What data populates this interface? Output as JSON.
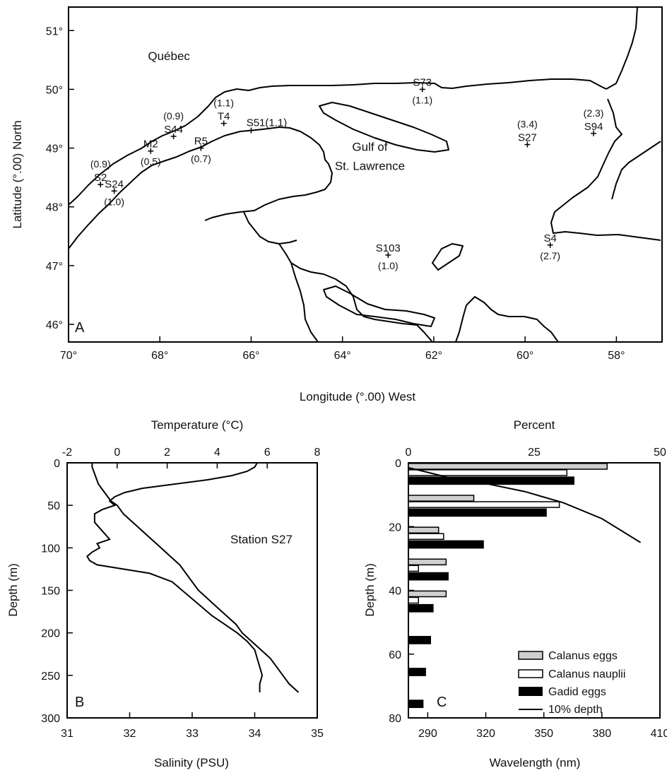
{
  "chart_data": [
    {
      "type": "map",
      "panel": "A",
      "xlabel": "Longitude (°.00) West",
      "ylabel": "Latitude (°.00) North",
      "xlim": [
        70,
        57
      ],
      "ylim": [
        45.7,
        51.4
      ],
      "x_ticks": [
        "70°",
        "68°",
        "66°",
        "64°",
        "62°",
        "60°",
        "58°"
      ],
      "y_ticks": [
        "46°",
        "47°",
        "48°",
        "49°",
        "50°",
        "51°"
      ],
      "x_tick_values": [
        70,
        68,
        66,
        64,
        62,
        60,
        58
      ],
      "y_tick_values": [
        46,
        47,
        48,
        49,
        50,
        51
      ],
      "region_labels": [
        {
          "text": "Québec",
          "lon": 67.8,
          "lat": 50.5
        },
        {
          "text": "Gulf of",
          "lon": 63.4,
          "lat": 48.95
        },
        {
          "text": "St. Lawrence",
          "lon": 63.4,
          "lat": 48.63
        }
      ],
      "stations": [
        {
          "name": "S73",
          "value": "(1.1)",
          "lon": 62.25,
          "lat": 50.0
        },
        {
          "name": "T4",
          "value": "(1.1)",
          "lon": 66.6,
          "lat": 49.42
        },
        {
          "name": "S51",
          "value": "(1.1)",
          "lon": 66.0,
          "lat": 49.3
        },
        {
          "name": "S44",
          "value": "(0.9)",
          "lon": 67.7,
          "lat": 49.2
        },
        {
          "name": "M2",
          "value": "(0.5)",
          "lon": 68.2,
          "lat": 48.95
        },
        {
          "name": "R5",
          "value": "(0.7)",
          "lon": 67.1,
          "lat": 49.0
        },
        {
          "name": "S2",
          "value": "(0.9)",
          "lon": 69.3,
          "lat": 48.38
        },
        {
          "name": "S24",
          "value": "(1.0)",
          "lon": 69.0,
          "lat": 48.27
        },
        {
          "name": "S103",
          "value": "(1.0)",
          "lon": 63.0,
          "lat": 47.18
        },
        {
          "name": "S27",
          "value": "(3.4)",
          "lon": 59.95,
          "lat": 49.06
        },
        {
          "name": "S94",
          "value": "(2.3)",
          "lon": 58.5,
          "lat": 49.25
        },
        {
          "name": "S4",
          "value": "(2.7)",
          "lon": 59.45,
          "lat": 47.35
        }
      ]
    },
    {
      "type": "line",
      "panel": "B",
      "annotation": "Station S27",
      "xlabel_top": "Temperature (°C)",
      "xlabel_bottom": "Salinity (PSU)",
      "ylabel": "Depth (m)",
      "temperature_xlim": [
        -2,
        8
      ],
      "salinity_xlim": [
        31,
        35
      ],
      "ylim": [
        300,
        0
      ],
      "temperature_ticks": [
        "-2",
        "0",
        "2",
        "4",
        "6",
        "8"
      ],
      "salinity_ticks": [
        "31",
        "32",
        "33",
        "34",
        "35"
      ],
      "depth_ticks": [
        "0",
        "50",
        "100",
        "150",
        "200",
        "250",
        "300"
      ],
      "series": [
        {
          "axis": "temperature",
          "depth": [
            0,
            5,
            10,
            15,
            20,
            25,
            30,
            35,
            40,
            45,
            50,
            55,
            60,
            70,
            80,
            90,
            95,
            100,
            105,
            110,
            115,
            120,
            130,
            140,
            150,
            160,
            170,
            180,
            190,
            200,
            210,
            220,
            230,
            240,
            250,
            260,
            270
          ],
          "values": [
            5.6,
            5.5,
            5.2,
            4.6,
            3.6,
            2.3,
            1.0,
            0.3,
            -0.1,
            -0.3,
            -0.1,
            -0.6,
            -0.9,
            -0.9,
            -0.6,
            -0.3,
            -0.8,
            -0.7,
            -1.0,
            -1.2,
            -1.1,
            -0.8,
            1.3,
            2.2,
            2.6,
            3.0,
            3.4,
            3.8,
            4.3,
            4.8,
            5.2,
            5.5,
            5.6,
            5.7,
            5.8,
            5.7,
            5.7
          ]
        },
        {
          "axis": "salinity",
          "depth": [
            0,
            5,
            15,
            25,
            35,
            45,
            50,
            60,
            70,
            80,
            90,
            100,
            110,
            120,
            130,
            140,
            150,
            160,
            170,
            180,
            190,
            200,
            210,
            220,
            230,
            240,
            250,
            260,
            270
          ],
          "values": [
            31.4,
            31.4,
            31.45,
            31.5,
            31.6,
            31.7,
            31.8,
            31.9,
            32.05,
            32.2,
            32.35,
            32.5,
            32.65,
            32.8,
            32.9,
            33.0,
            33.1,
            33.25,
            33.4,
            33.55,
            33.7,
            33.8,
            33.95,
            34.1,
            34.25,
            34.35,
            34.45,
            34.55,
            34.7
          ]
        }
      ]
    },
    {
      "type": "bar",
      "panel": "C",
      "orientation": "horizontal",
      "xlabel_top": "Percent",
      "xlabel_bottom": "Wavelength (nm)",
      "ylabel": "Depth (m)",
      "percent_xlim": [
        0,
        50
      ],
      "wavelength_xlim": [
        280,
        410
      ],
      "ylim": [
        80,
        0
      ],
      "percent_ticks": [
        "0",
        "25",
        "50"
      ],
      "wavelength_ticks": [
        "290",
        "320",
        "350",
        "380",
        "410"
      ],
      "depth_ticks": [
        "0",
        "20",
        "40",
        "60",
        "80"
      ],
      "legend": [
        "Calanus eggs",
        "Calanus nauplii",
        "Gadid eggs",
        "10% depth"
      ],
      "legend_position": "bottom-right",
      "series": [
        {
          "name": "Calanus eggs",
          "depth": [
            0,
            10,
            20,
            30,
            40
          ],
          "values": [
            39.5,
            13,
            6,
            7.5,
            7.5
          ]
        },
        {
          "name": "Calanus nauplii",
          "depth": [
            0,
            10,
            20,
            30,
            40
          ],
          "values": [
            31.5,
            30,
            7,
            2,
            2
          ]
        },
        {
          "name": "Gadid eggs",
          "depth": [
            0,
            10,
            20,
            30,
            40,
            50,
            60,
            70
          ],
          "values": [
            33,
            27.5,
            15,
            8,
            5,
            4.5,
            3.5,
            3
          ]
        }
      ],
      "line_10pct_depth": {
        "wavelength": [
          280,
          290,
          300,
          320,
          340,
          360,
          380,
          400
        ],
        "depth": [
          1.5,
          3,
          4.5,
          6.5,
          9,
          12.5,
          17.5,
          25
        ]
      }
    }
  ]
}
